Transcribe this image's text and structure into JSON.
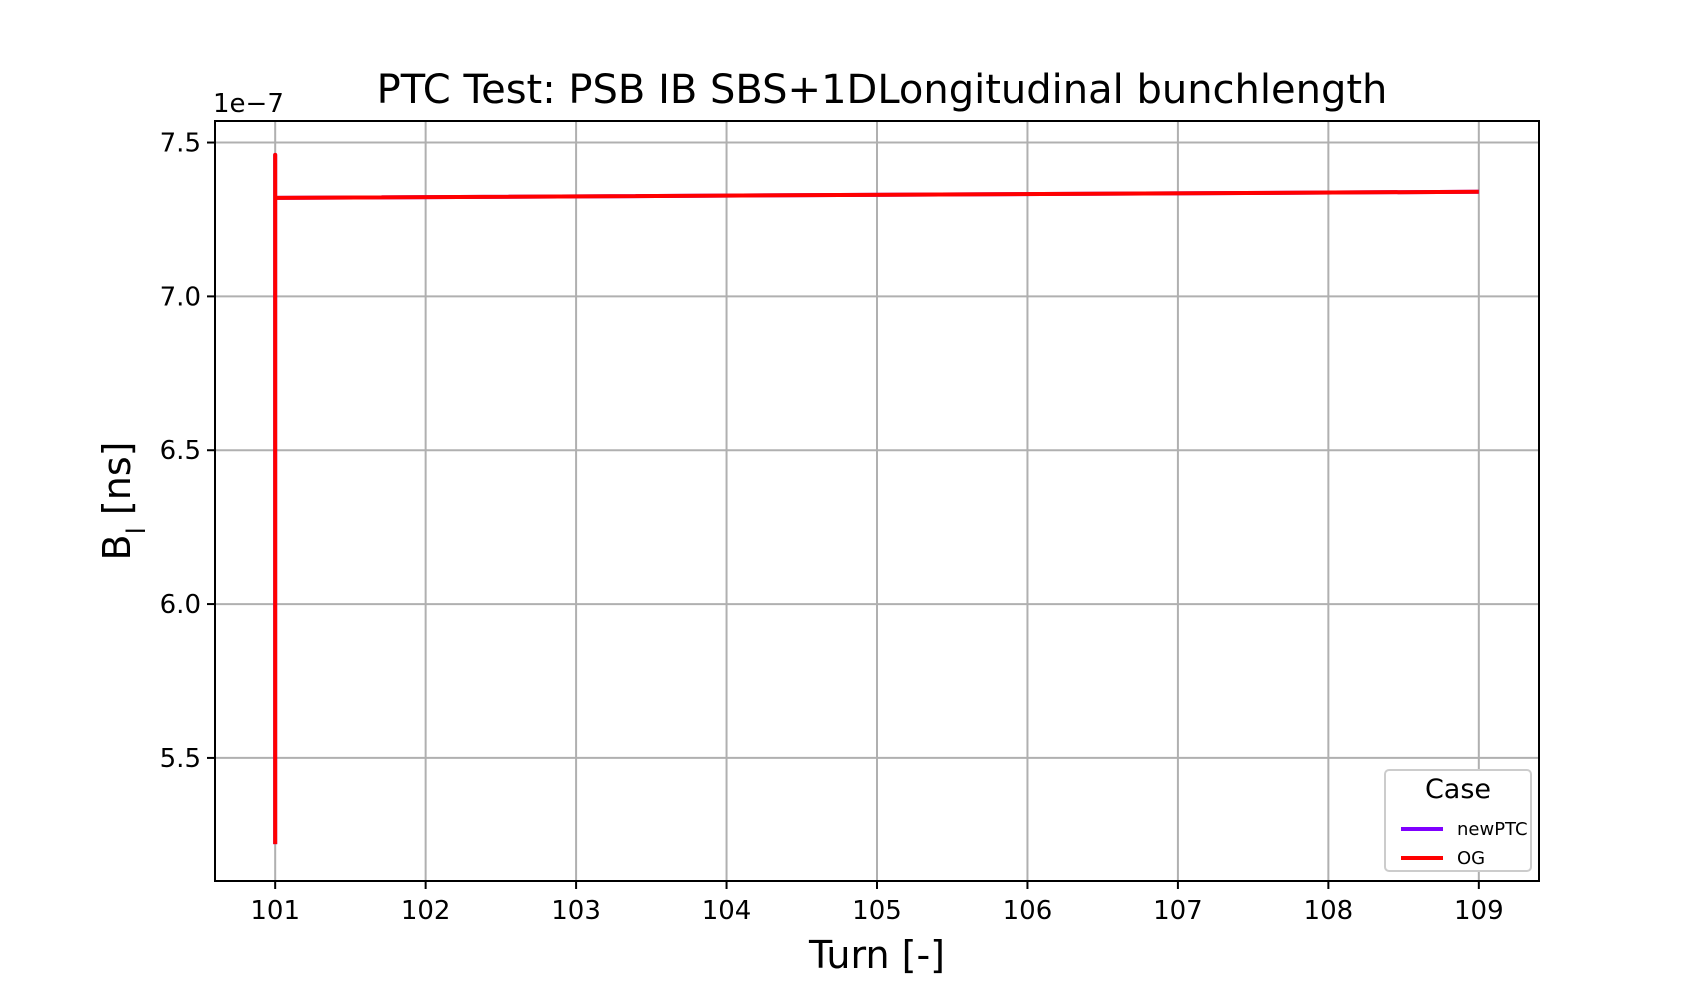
{
  "chart_data": {
    "type": "line",
    "title": "PTC Test: PSB IB SBS+1DLongitudinal bunchlength",
    "xlabel": "Turn [-]",
    "ylabel_main": "B",
    "ylabel_sub": "l",
    "ylabel_unit": " [ns]",
    "y_offset_label": "1e−7",
    "xlim": [
      100.6,
      109.4
    ],
    "ylim": [
      5.1,
      7.57
    ],
    "x_ticks": [
      101,
      102,
      103,
      104,
      105,
      106,
      107,
      108,
      109
    ],
    "x_tick_labels": [
      "101",
      "102",
      "103",
      "104",
      "105",
      "106",
      "107",
      "108",
      "109"
    ],
    "y_ticks": [
      5.5,
      6.0,
      6.5,
      7.0,
      7.5
    ],
    "y_tick_labels": [
      "5.5",
      "6.0",
      "6.5",
      "7.0",
      "7.5"
    ],
    "grid": true,
    "legend": {
      "title": "Case",
      "placement": "lower-right"
    },
    "series": [
      {
        "name": "newPTC",
        "color": "#7f00ff",
        "x": [
          101,
          101,
          101,
          101,
          109
        ],
        "y": [
          5.22,
          7.46,
          7.1,
          7.32,
          7.34
        ]
      },
      {
        "name": "OG",
        "color": "#ff0000",
        "x": [
          101,
          101,
          101,
          101,
          109
        ],
        "y": [
          5.22,
          7.46,
          7.1,
          7.32,
          7.34
        ]
      }
    ]
  }
}
